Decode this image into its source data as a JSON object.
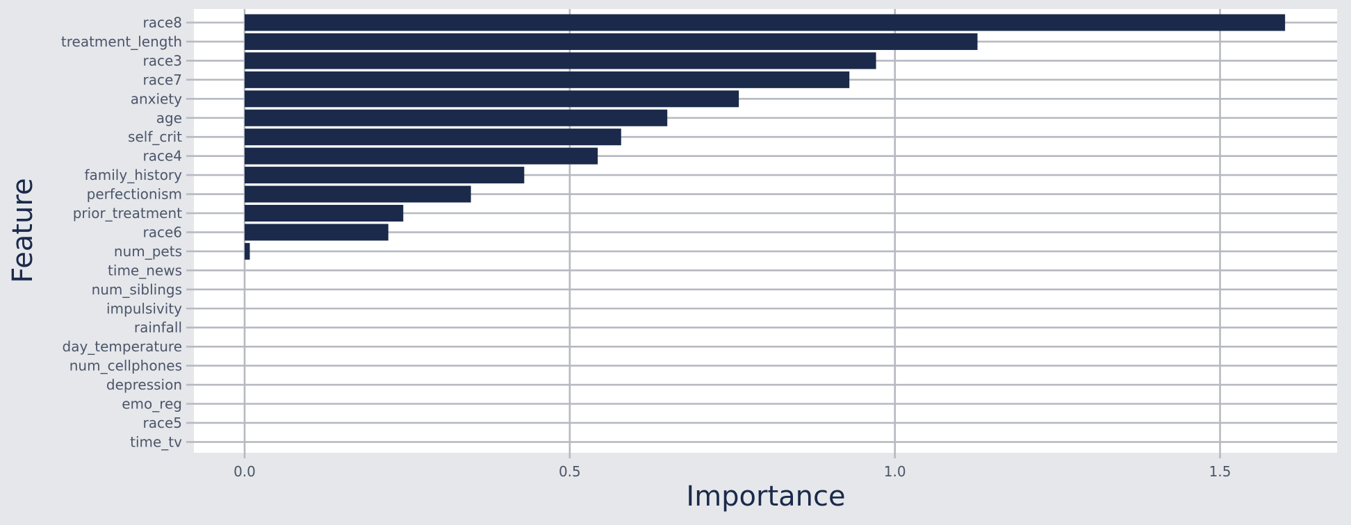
{
  "chart_data": {
    "type": "bar",
    "orientation": "horizontal",
    "title": "",
    "xlabel": "Importance",
    "ylabel": "Feature",
    "xlim": [
      -0.078,
      1.68
    ],
    "x_ticks": [
      0.0,
      0.5,
      1.0,
      1.5
    ],
    "x_tick_labels": [
      "0.0",
      "0.5",
      "1.0",
      "1.5"
    ],
    "grid": true,
    "categories": [
      "race8",
      "treatment_length",
      "race3",
      "race7",
      "anxiety",
      "age",
      "self_crit",
      "race4",
      "family_history",
      "perfectionism",
      "prior_treatment",
      "race6",
      "num_pets",
      "time_news",
      "num_siblings",
      "impulsivity",
      "rainfall",
      "day_temperature",
      "num_cellphones",
      "depression",
      "emo_reg",
      "race5",
      "time_tv"
    ],
    "values": [
      1.6,
      1.127,
      0.971,
      0.93,
      0.76,
      0.65,
      0.579,
      0.543,
      0.43,
      0.348,
      0.244,
      0.221,
      0.008,
      0,
      0,
      0,
      0,
      0,
      0,
      0,
      0,
      0,
      0
    ],
    "colors": {
      "bar": "#1b2a4a",
      "panel_background": "#ffffff",
      "page_background": "#e5e7eb",
      "grid": "#b6b9c0",
      "tick_text": "#4b5568",
      "title_text": "#1a2a4a"
    }
  }
}
